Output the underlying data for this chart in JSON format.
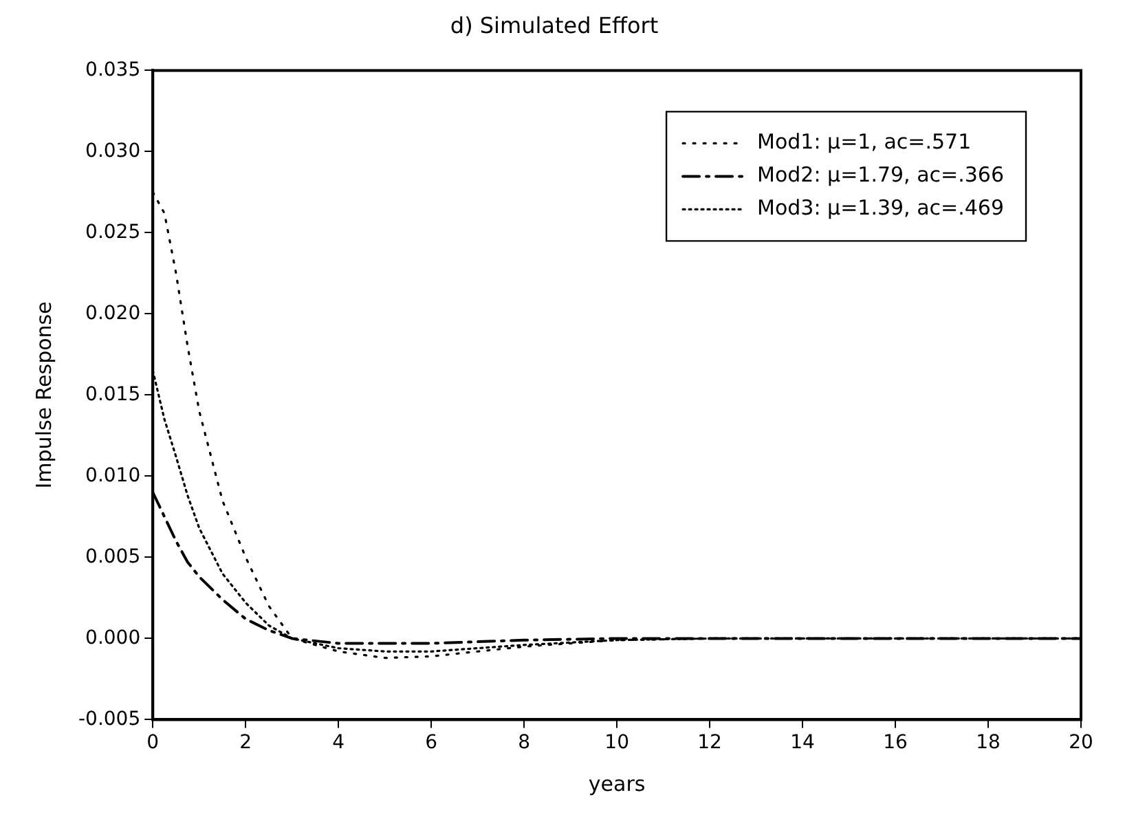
{
  "chart_data": {
    "type": "line",
    "title": "d) Simulated Effort",
    "xlabel": "years",
    "ylabel": "Impulse Response",
    "x": [
      0,
      0.25,
      0.5,
      0.75,
      1,
      1.5,
      2,
      2.5,
      3,
      4,
      5,
      6,
      7,
      8,
      10,
      12,
      14,
      16,
      18,
      20
    ],
    "series": [
      {
        "name": "Mod1: μ=1, ac=.571",
        "color": "#000000",
        "line_style": "dotted",
        "values": [
          0.0275,
          0.0262,
          0.0225,
          0.018,
          0.014,
          0.0085,
          0.005,
          0.002,
          0,
          -0.0008,
          -0.0012,
          -0.0011,
          -0.0008,
          -0.0005,
          -0.0001,
          0,
          0,
          0,
          0,
          0
        ]
      },
      {
        "name": "Mod2: μ=1.79, ac=.366",
        "color": "#000000",
        "line_style": "dashed",
        "values": [
          0.009,
          0.0075,
          0.006,
          0.0047,
          0.0038,
          0.0024,
          0.0012,
          0.0005,
          0,
          -0.0003,
          -0.0003,
          -0.0003,
          -0.0002,
          -0.0001,
          0,
          0,
          0,
          0,
          0,
          0
        ]
      },
      {
        "name": "Mod3: μ=1.39, ac=.469",
        "color": "#000000",
        "line_style": "dotted",
        "values": [
          0.0165,
          0.0135,
          0.0112,
          0.0088,
          0.0068,
          0.004,
          0.0022,
          0.0008,
          0,
          -0.0006,
          -0.0008,
          -0.0008,
          -0.0006,
          -0.0004,
          -0.0001,
          0,
          0,
          0,
          0,
          0
        ]
      }
    ],
    "xlim": [
      0,
      20
    ],
    "xticks": [
      0,
      2,
      4,
      6,
      8,
      10,
      12,
      14,
      16,
      18,
      20
    ],
    "ylim": [
      -0.005,
      0.035
    ],
    "yticks": [
      {
        "value": -0.005,
        "label": "-0.005"
      },
      {
        "value": 0,
        "label": "0.000"
      },
      {
        "value": 0.005,
        "label": "0.005"
      },
      {
        "value": 0.01,
        "label": "0.010"
      },
      {
        "value": 0.015,
        "label": "0.015"
      },
      {
        "value": 0.02,
        "label": "0.020"
      },
      {
        "value": 0.025,
        "label": "0.025"
      },
      {
        "value": 0.03,
        "label": "0.030"
      },
      {
        "value": 0.035,
        "label": "0.035"
      }
    ],
    "grid": false,
    "legend": "top right",
    "marker": "none"
  }
}
